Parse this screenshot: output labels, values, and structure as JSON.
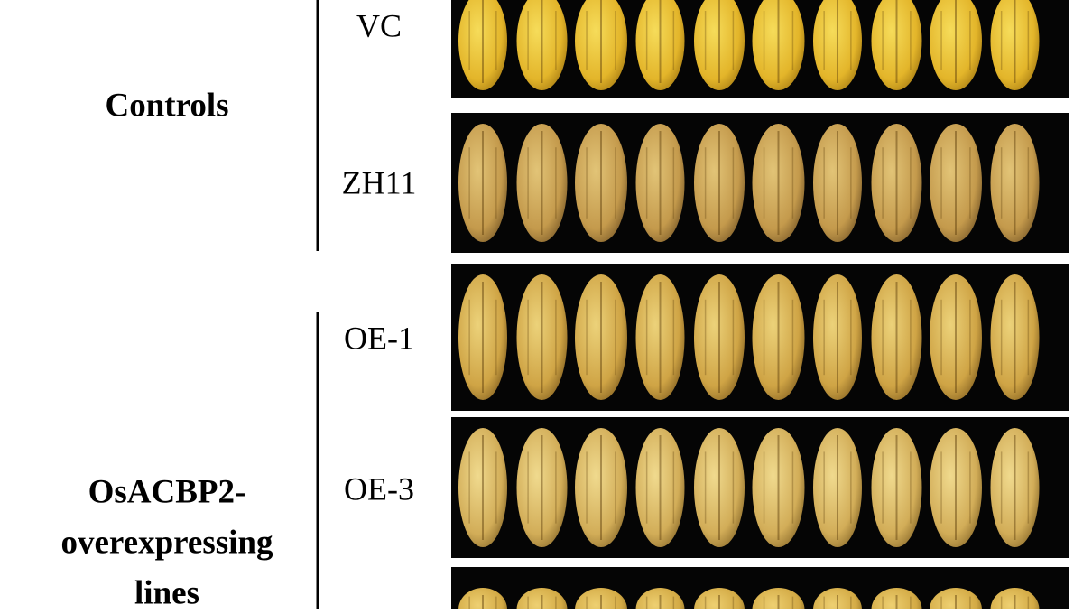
{
  "groups": [
    {
      "label": [
        "Controls"
      ],
      "rows": [
        "VC",
        "ZH11"
      ]
    },
    {
      "label": [
        "OsACBP2-",
        "overexpressing",
        "lines"
      ],
      "rows": [
        "OE-1",
        "OE-3"
      ]
    }
  ]
}
